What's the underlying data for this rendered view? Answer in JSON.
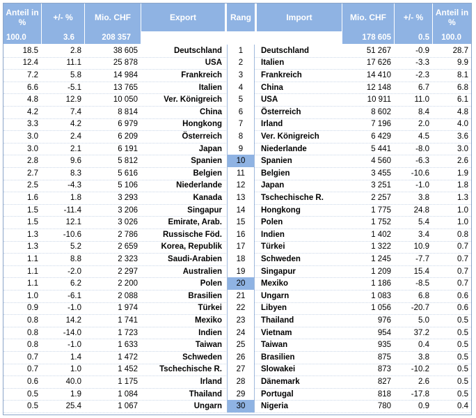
{
  "headers": {
    "anteil": "Anteil in %",
    "change": "+/- %",
    "mio": "Mio. CHF",
    "export": "Export",
    "rang": "Rang",
    "import": "Import",
    "imp_mio": "Mio. CHF",
    "imp_change": "+/- %",
    "imp_anteil": "Anteil in %"
  },
  "totals": {
    "exp_share": "100.0",
    "exp_change": "3.6",
    "exp_mio": "208 357",
    "imp_mio": "178 605",
    "imp_change": "0.5",
    "imp_share": "100.0"
  },
  "rows": [
    {
      "es": "18.5",
      "ec": "2.8",
      "em": "38 605",
      "ex": "Deutschland",
      "rank": "1",
      "im": "Deutschland",
      "imm": "51 267",
      "ic": "-0.9",
      "is": "28.7"
    },
    {
      "es": "12.4",
      "ec": "11.1",
      "em": "25 878",
      "ex": "USA",
      "rank": "2",
      "im": "Italien",
      "imm": "17 626",
      "ic": "-3.3",
      "is": "9.9"
    },
    {
      "es": "7.2",
      "ec": "5.8",
      "em": "14 984",
      "ex": "Frankreich",
      "rank": "3",
      "im": "Frankreich",
      "imm": "14 410",
      "ic": "-2.3",
      "is": "8.1"
    },
    {
      "es": "6.6",
      "ec": "-5.1",
      "em": "13 765",
      "ex": "Italien",
      "rank": "4",
      "im": "China",
      "imm": "12 148",
      "ic": "6.7",
      "is": "6.8"
    },
    {
      "es": "4.8",
      "ec": "12.9",
      "em": "10 050",
      "ex": "Ver. Königreich",
      "rank": "5",
      "im": "USA",
      "imm": "10 911",
      "ic": "11.0",
      "is": "6.1"
    },
    {
      "es": "4.2",
      "ec": "7.4",
      "em": "8 814",
      "ex": "China",
      "rank": "6",
      "im": "Österreich",
      "imm": "8 602",
      "ic": "8.4",
      "is": "4.8"
    },
    {
      "es": "3.3",
      "ec": "4.2",
      "em": "6 979",
      "ex": "Hongkong",
      "rank": "7",
      "im": "Irland",
      "imm": "7 196",
      "ic": "2.0",
      "is": "4.0"
    },
    {
      "es": "3.0",
      "ec": "2.4",
      "em": "6 209",
      "ex": "Österreich",
      "rank": "8",
      "im": "Ver. Königreich",
      "imm": "6 429",
      "ic": "4.5",
      "is": "3.6"
    },
    {
      "es": "3.0",
      "ec": "2.1",
      "em": "6 191",
      "ex": "Japan",
      "rank": "9",
      "im": "Niederlande",
      "imm": "5 441",
      "ic": "-8.0",
      "is": "3.0"
    },
    {
      "es": "2.8",
      "ec": "9.6",
      "em": "5 812",
      "ex": "Spanien",
      "rank": "10",
      "im": "Spanien",
      "imm": "4 560",
      "ic": "-6.3",
      "is": "2.6"
    },
    {
      "es": "2.7",
      "ec": "8.3",
      "em": "5 616",
      "ex": "Belgien",
      "rank": "11",
      "im": "Belgien",
      "imm": "3 455",
      "ic": "-10.6",
      "is": "1.9"
    },
    {
      "es": "2.5",
      "ec": "-4.3",
      "em": "5 106",
      "ex": "Niederlande",
      "rank": "12",
      "im": "Japan",
      "imm": "3 251",
      "ic": "-1.0",
      "is": "1.8"
    },
    {
      "es": "1.6",
      "ec": "1.8",
      "em": "3 293",
      "ex": "Kanada",
      "rank": "13",
      "im": "Tschechische R.",
      "imm": "2 257",
      "ic": "3.8",
      "is": "1.3"
    },
    {
      "es": "1.5",
      "ec": "-11.4",
      "em": "3 206",
      "ex": "Singapur",
      "rank": "14",
      "im": "Hongkong",
      "imm": "1 775",
      "ic": "24.8",
      "is": "1.0"
    },
    {
      "es": "1.5",
      "ec": "12.1",
      "em": "3 026",
      "ex": "Emirate, Arab.",
      "rank": "15",
      "im": "Polen",
      "imm": "1 752",
      "ic": "5.4",
      "is": "1.0"
    },
    {
      "es": "1.3",
      "ec": "-10.6",
      "em": "2 786",
      "ex": "Russische Föd.",
      "rank": "16",
      "im": "Indien",
      "imm": "1 402",
      "ic": "3.4",
      "is": "0.8"
    },
    {
      "es": "1.3",
      "ec": "5.2",
      "em": "2 659",
      "ex": "Korea, Republik",
      "rank": "17",
      "im": "Türkei",
      "imm": "1 322",
      "ic": "10.9",
      "is": "0.7"
    },
    {
      "es": "1.1",
      "ec": "8.8",
      "em": "2 323",
      "ex": "Saudi-Arabien",
      "rank": "18",
      "im": "Schweden",
      "imm": "1 245",
      "ic": "-7.7",
      "is": "0.7"
    },
    {
      "es": "1.1",
      "ec": "-2.0",
      "em": "2 297",
      "ex": "Australien",
      "rank": "19",
      "im": "Singapur",
      "imm": "1 209",
      "ic": "15.4",
      "is": "0.7"
    },
    {
      "es": "1.1",
      "ec": "6.2",
      "em": "2 200",
      "ex": "Polen",
      "rank": "20",
      "im": "Mexiko",
      "imm": "1 186",
      "ic": "-8.5",
      "is": "0.7"
    },
    {
      "es": "1.0",
      "ec": "-6.1",
      "em": "2 088",
      "ex": "Brasilien",
      "rank": "21",
      "im": "Ungarn",
      "imm": "1 083",
      "ic": "6.8",
      "is": "0.6"
    },
    {
      "es": "0.9",
      "ec": "-1.0",
      "em": "1 974",
      "ex": "Türkei",
      "rank": "22",
      "im": "Libyen",
      "imm": "1 056",
      "ic": "-20.7",
      "is": "0.6"
    },
    {
      "es": "0.8",
      "ec": "14.2",
      "em": "1 741",
      "ex": "Mexiko",
      "rank": "23",
      "im": "Thailand",
      "imm": "976",
      "ic": "5.0",
      "is": "0.5"
    },
    {
      "es": "0.8",
      "ec": "-14.0",
      "em": "1 723",
      "ex": "Indien",
      "rank": "24",
      "im": "Vietnam",
      "imm": "954",
      "ic": "37.2",
      "is": "0.5"
    },
    {
      "es": "0.8",
      "ec": "-1.0",
      "em": "1 633",
      "ex": "Taiwan",
      "rank": "25",
      "im": "Taiwan",
      "imm": "935",
      "ic": "0.4",
      "is": "0.5"
    },
    {
      "es": "0.7",
      "ec": "1.4",
      "em": "1 472",
      "ex": "Schweden",
      "rank": "26",
      "im": "Brasilien",
      "imm": "875",
      "ic": "3.8",
      "is": "0.5"
    },
    {
      "es": "0.7",
      "ec": "1.0",
      "em": "1 452",
      "ex": "Tschechische R.",
      "rank": "27",
      "im": "Slowakei",
      "imm": "873",
      "ic": "-10.2",
      "is": "0.5"
    },
    {
      "es": "0.6",
      "ec": "40.0",
      "em": "1 175",
      "ex": "Irland",
      "rank": "28",
      "im": "Dänemark",
      "imm": "827",
      "ic": "2.6",
      "is": "0.5"
    },
    {
      "es": "0.5",
      "ec": "1.9",
      "em": "1 084",
      "ex": "Thailand",
      "rank": "29",
      "im": "Portugal",
      "imm": "818",
      "ic": "-17.8",
      "is": "0.5"
    },
    {
      "es": "0.5",
      "ec": "25.4",
      "em": "1 067",
      "ex": "Ungarn",
      "rank": "30",
      "im": "Nigeria",
      "imm": "780",
      "ic": "0.9",
      "is": "0.4"
    }
  ],
  "highlighted_ranks": [
    "10",
    "20",
    "30"
  ],
  "colors": {
    "header_bg": "#8fb3e3",
    "header_text": "#ffffff",
    "grid": "#c9d6e8"
  }
}
